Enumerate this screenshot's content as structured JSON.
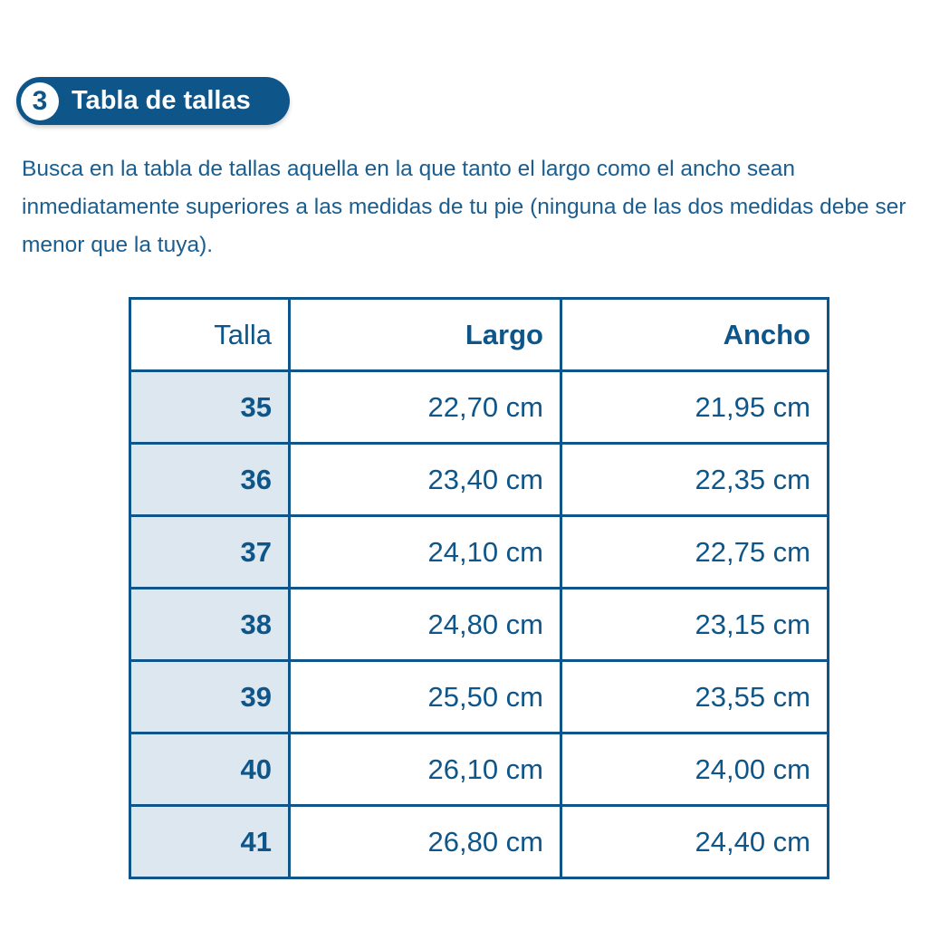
{
  "section": {
    "number": "3",
    "title": "Tabla de tallas"
  },
  "intro": "Busca en la tabla de tallas aquella en la que tanto el largo como el ancho sean inmediatamente superiores a las medidas de tu pie (ninguna de las dos medidas debe ser menor que la tuya).",
  "table": {
    "headers": [
      "Talla",
      "Largo",
      "Ancho"
    ],
    "rows": [
      [
        "35",
        "22,70 cm",
        "21,95 cm"
      ],
      [
        "36",
        "23,40 cm",
        "22,35 cm"
      ],
      [
        "37",
        "24,10 cm",
        "22,75 cm"
      ],
      [
        "38",
        "24,80 cm",
        "23,15 cm"
      ],
      [
        "39",
        "25,50 cm",
        "23,55 cm"
      ],
      [
        "40",
        "26,10 cm",
        "24,00 cm"
      ],
      [
        "41",
        "26,80 cm",
        "24,40 cm"
      ]
    ]
  },
  "colors": {
    "primary": "#0e568a",
    "first_column_bg": "#dde7f0"
  }
}
